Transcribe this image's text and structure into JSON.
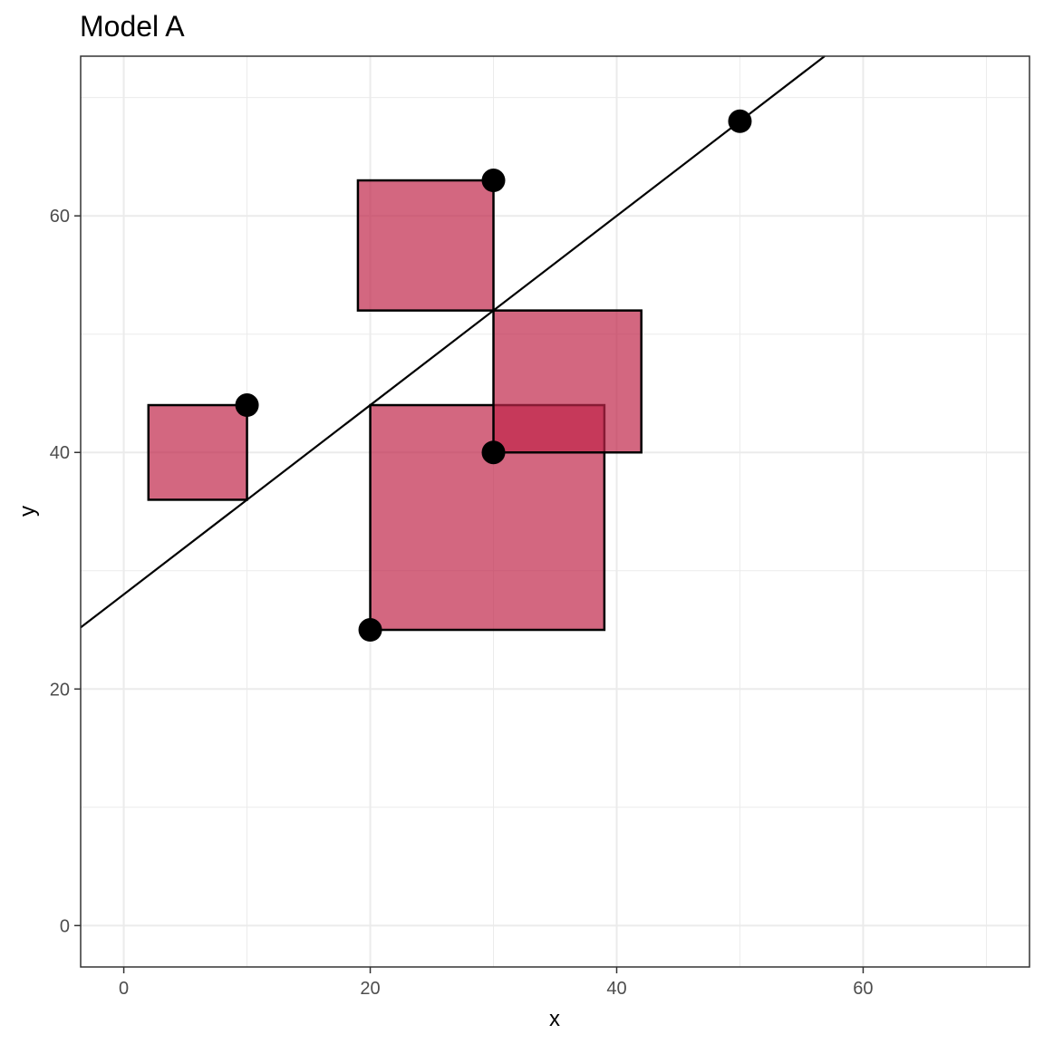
{
  "chart_data": {
    "type": "scatter",
    "title": "Model A",
    "xlabel": "x",
    "ylabel": "y",
    "xlim": [
      -3.5,
      73.5
    ],
    "ylim": [
      -3.5,
      73.5
    ],
    "x_ticks": [
      0,
      20,
      40,
      60
    ],
    "y_ticks": [
      0,
      20,
      40,
      60
    ],
    "x_minor": [
      10,
      30,
      50,
      70
    ],
    "y_minor": [
      10,
      30,
      50,
      70
    ],
    "grid": true,
    "points": [
      {
        "x": 10,
        "y": 44
      },
      {
        "x": 20,
        "y": 25
      },
      {
        "x": 30,
        "y": 40
      },
      {
        "x": 30,
        "y": 63
      },
      {
        "x": 50,
        "y": 68
      }
    ],
    "fit_line": {
      "intercept": 28,
      "slope": 0.8
    },
    "residual_squares": [
      {
        "x0": 2,
        "x1": 10,
        "y0": 36,
        "y1": 44
      },
      {
        "x0": 20,
        "x1": 39,
        "y0": 25,
        "y1": 44
      },
      {
        "x0": 30,
        "x1": 42,
        "y0": 40,
        "y1": 52
      },
      {
        "x0": 19,
        "x1": 30,
        "y0": 52,
        "y1": 63
      }
    ],
    "colors": {
      "square_fill": "#c0264a",
      "square_opacity": 0.7,
      "point": "#000000",
      "line": "#000000"
    }
  }
}
